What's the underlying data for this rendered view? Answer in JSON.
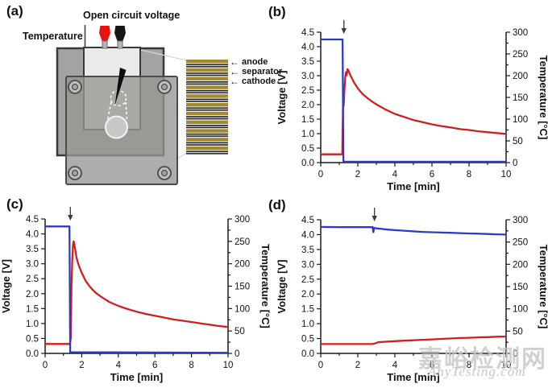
{
  "watermark": {
    "cn": "嘉峪检测网",
    "en": "AnyTesting.com"
  },
  "icons": {
    "arrow_left": "←",
    "arrow_down": "↓"
  },
  "colors": {
    "voltage": "#2b3cc4",
    "temperature": "#cf1f1f",
    "stack_gold": "#a2882e",
    "stack_dark": "#1c1c1c",
    "clip_red": "#e41414",
    "clip_black": "#161616"
  },
  "panel_a": {
    "label": "(a)",
    "open_circuit_voltage": "Open circuit voltage",
    "temperature": "Temperature",
    "layers": [
      "anode",
      "separator",
      "cathode"
    ]
  },
  "chart_data": [
    {
      "id": "b",
      "label": "(b)",
      "type": "line",
      "x": {
        "label": "Time [min]",
        "min": 0,
        "max": 10,
        "majors": [
          0,
          2,
          4,
          6,
          8,
          10
        ],
        "minors": [
          1,
          3,
          5,
          7,
          9
        ]
      },
      "y_left": {
        "label": "Voltage [V]",
        "min": 0,
        "max": 4.5,
        "step": 0.5
      },
      "y_right": {
        "label": "Temperature [°C]",
        "min": 0,
        "max": 300,
        "step": 50,
        "minor_step": 25
      },
      "arrow_x": 1.25,
      "series": [
        {
          "name": "temperature",
          "axis": "right",
          "color_key": "temperature",
          "points": [
            [
              0,
              19
            ],
            [
              1.16,
              19
            ],
            [
              1.2,
              128
            ],
            [
              1.24,
              132
            ],
            [
              1.28,
              168
            ],
            [
              1.32,
              196
            ],
            [
              1.36,
              208
            ],
            [
              1.4,
              201
            ],
            [
              1.44,
              215
            ],
            [
              1.5,
              211
            ],
            [
              1.6,
              201
            ],
            [
              1.8,
              184
            ],
            [
              2,
              171
            ],
            [
              2.25,
              158
            ],
            [
              2.5,
              149
            ],
            [
              2.75,
              141
            ],
            [
              3,
              134
            ],
            [
              3.5,
              122
            ],
            [
              4,
              112
            ],
            [
              4.5,
              105
            ],
            [
              5,
              98
            ],
            [
              5.5,
              93
            ],
            [
              6,
              88
            ],
            [
              6.5,
              84
            ],
            [
              7,
              81
            ],
            [
              7.5,
              77
            ],
            [
              8,
              75
            ],
            [
              8.5,
              72
            ],
            [
              9,
              70
            ],
            [
              9.5,
              68
            ],
            [
              10,
              66
            ]
          ]
        },
        {
          "name": "voltage",
          "axis": "left",
          "color_key": "voltage",
          "points": [
            [
              0,
              4.25
            ],
            [
              1.18,
              4.25
            ],
            [
              1.22,
              0.05
            ],
            [
              1.3,
              0.03
            ],
            [
              10,
              0.03
            ]
          ]
        }
      ]
    },
    {
      "id": "c",
      "label": "(c)",
      "type": "line",
      "x": {
        "label": "Time [min]",
        "min": 0,
        "max": 10,
        "majors": [
          0,
          2,
          4,
          6,
          8,
          10
        ],
        "minors": [
          1,
          3,
          5,
          7,
          9
        ]
      },
      "y_left": {
        "label": "Voltage [V]",
        "min": 0,
        "max": 4.5,
        "step": 0.5
      },
      "y_right": {
        "label": "Temperature [°C]",
        "min": 0,
        "max": 300,
        "step": 50,
        "minor_step": 25
      },
      "arrow_x": 1.38,
      "series": [
        {
          "name": "temperature",
          "axis": "right",
          "color_key": "temperature",
          "points": [
            [
              0,
              21
            ],
            [
              1.36,
              21
            ],
            [
              1.4,
              35
            ],
            [
              1.44,
              150
            ],
            [
              1.48,
              205
            ],
            [
              1.52,
              240
            ],
            [
              1.56,
              250
            ],
            [
              1.6,
              243
            ],
            [
              1.66,
              228
            ],
            [
              1.72,
              213
            ],
            [
              1.8,
              201
            ],
            [
              1.9,
              190
            ],
            [
              2,
              180
            ],
            [
              2.2,
              163
            ],
            [
              2.4,
              151
            ],
            [
              2.6,
              142
            ],
            [
              2.8,
              134
            ],
            [
              3,
              128
            ],
            [
              3.5,
              115
            ],
            [
              4,
              106
            ],
            [
              4.5,
              99
            ],
            [
              5,
              93
            ],
            [
              5.5,
              88
            ],
            [
              6,
              84
            ],
            [
              6.5,
              80
            ],
            [
              7,
              76
            ],
            [
              7.5,
              73
            ],
            [
              8,
              70
            ],
            [
              8.5,
              67
            ],
            [
              9,
              64
            ],
            [
              9.5,
              61
            ],
            [
              10,
              59
            ]
          ]
        },
        {
          "name": "voltage",
          "axis": "left",
          "color_key": "voltage",
          "points": [
            [
              0,
              4.25
            ],
            [
              1.33,
              4.25
            ],
            [
              1.37,
              0.04
            ],
            [
              10,
              0.02
            ]
          ]
        }
      ]
    },
    {
      "id": "d",
      "label": "(d)",
      "type": "line",
      "x": {
        "label": "Time [min]",
        "min": 0,
        "max": 10,
        "majors": [
          0,
          2,
          4,
          6,
          8,
          10
        ],
        "minors": [
          1,
          3,
          5,
          7,
          9
        ]
      },
      "y_left": {
        "label": "Voltage [V]",
        "min": 0,
        "max": 4.5,
        "step": 0.5
      },
      "y_right": {
        "label": "Temperature [°C]",
        "min": 0,
        "max": 300,
        "step": 50,
        "minor_step": 25
      },
      "arrow_x": 2.9,
      "series": [
        {
          "name": "temperature",
          "axis": "right",
          "color_key": "temperature",
          "points": [
            [
              0,
              21
            ],
            [
              1,
              21
            ],
            [
              2,
              21
            ],
            [
              2.8,
              21
            ],
            [
              2.9,
              22
            ],
            [
              3.1,
              25
            ],
            [
              3.4,
              26
            ],
            [
              4,
              27.5
            ],
            [
              4.5,
              28.5
            ],
            [
              5,
              29.5
            ],
            [
              5.5,
              30.5
            ],
            [
              6,
              31.5
            ],
            [
              6.5,
              32.5
            ],
            [
              7,
              33.5
            ],
            [
              7.5,
              34.5
            ],
            [
              8,
              35
            ],
            [
              8.5,
              36
            ],
            [
              9,
              36.5
            ],
            [
              9.5,
              37.5
            ],
            [
              10,
              38
            ]
          ]
        },
        {
          "name": "voltage",
          "axis": "left",
          "color_key": "voltage",
          "points": [
            [
              0,
              4.26
            ],
            [
              1,
              4.25
            ],
            [
              2,
              4.25
            ],
            [
              2.8,
              4.25
            ],
            [
              2.84,
              4.08
            ],
            [
              2.88,
              4.23
            ],
            [
              3,
              4.21
            ],
            [
              3.3,
              4.19
            ],
            [
              3.6,
              4.17
            ],
            [
              4,
              4.15
            ],
            [
              4.5,
              4.13
            ],
            [
              5,
              4.11
            ],
            [
              5.5,
              4.09
            ],
            [
              6,
              4.08
            ],
            [
              6.5,
              4.07
            ],
            [
              7,
              4.06
            ],
            [
              7.5,
              4.05
            ],
            [
              8,
              4.04
            ],
            [
              8.5,
              4.03
            ],
            [
              9,
              4.02
            ],
            [
              9.5,
              4.01
            ],
            [
              10,
              4.0
            ]
          ]
        }
      ]
    }
  ]
}
